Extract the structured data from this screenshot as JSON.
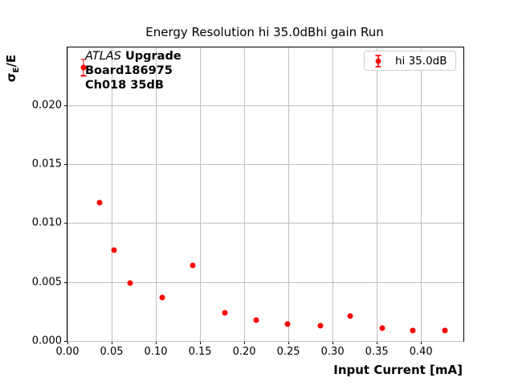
{
  "window": {
    "background": "#ffffff"
  },
  "chart": {
    "title": "Energy Resolution hi 35.0dBhi gain Run"
  },
  "annotation": {
    "experiment": "ATLAS",
    "upgrade": " Upgrade",
    "board": "Board186975",
    "channel": "Ch018 35dB"
  },
  "legend": {
    "label": "hi 35.0dB",
    "marker_color": "#ff0000"
  },
  "axes": {
    "x_label": "Input Current [mA]",
    "y_label": {
      "sigma": "σ",
      "sub": "E",
      "rest": "/E"
    }
  },
  "chart_data": {
    "type": "scatter",
    "title": "Energy Resolution hi 35.0dBhi gain Run",
    "xlabel": "Input Current [mA]",
    "ylabel": "sigma_E/E",
    "xlim": [
      0.0,
      0.448
    ],
    "ylim": [
      0.0,
      0.0249
    ],
    "grid": true,
    "grid_color": "#bfbfbf",
    "legend_position": "upper right",
    "x_ticks": {
      "values": [
        0.0,
        0.05,
        0.1,
        0.15,
        0.2,
        0.25,
        0.3,
        0.35,
        0.4
      ],
      "labels": [
        "0.00",
        "0.05",
        "0.10",
        "0.15",
        "0.20",
        "0.25",
        "0.30",
        "0.35",
        "0.40"
      ]
    },
    "y_ticks": {
      "values": [
        0.0,
        0.005,
        0.01,
        0.015,
        0.02
      ],
      "labels": [
        "0.000",
        "0.005",
        "0.010",
        "0.015",
        "0.020"
      ]
    },
    "series": [
      {
        "name": "hi 35.0dB",
        "color": "#ff0000",
        "marker": "circle",
        "x": [
          0.018,
          0.036,
          0.053,
          0.071,
          0.107,
          0.142,
          0.178,
          0.214,
          0.249,
          0.286,
          0.32,
          0.356,
          0.391,
          0.427
        ],
        "y": [
          0.0232,
          0.0117,
          0.0077,
          0.0049,
          0.0037,
          0.0064,
          0.0024,
          0.0018,
          0.0014,
          0.0013,
          0.0021,
          0.0011,
          0.0009,
          0.0009
        ],
        "yerr": [
          0.0007,
          0,
          0,
          0,
          0,
          0,
          0,
          0,
          0,
          0,
          0,
          0,
          0,
          0
        ]
      }
    ]
  }
}
